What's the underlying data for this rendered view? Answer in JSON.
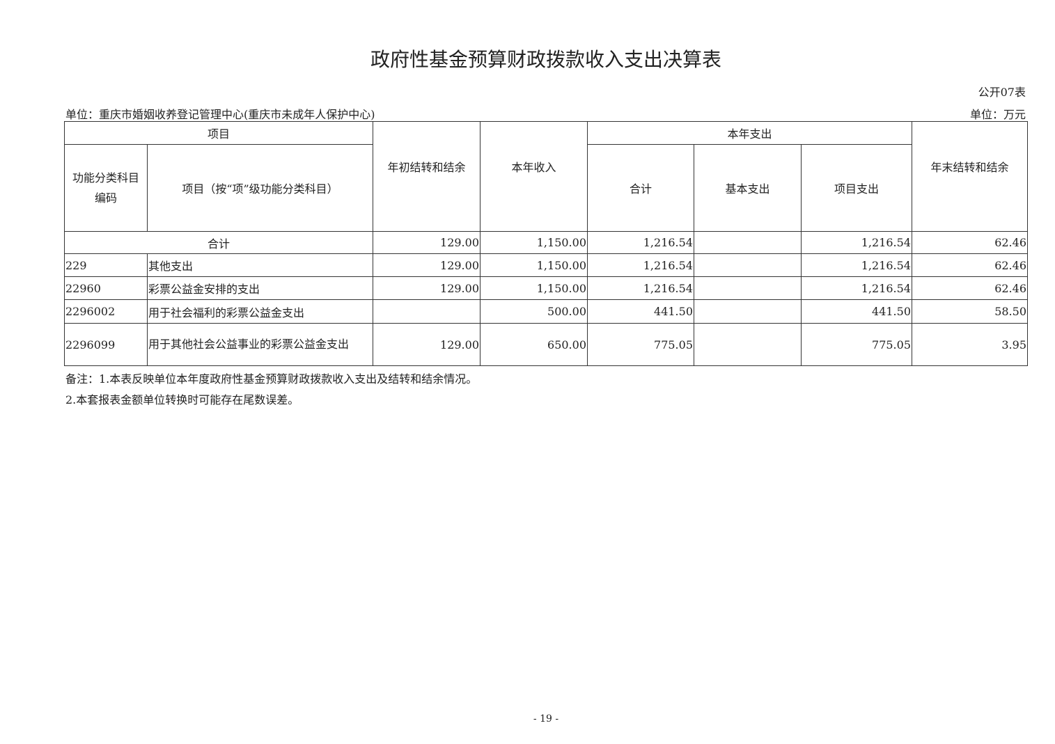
{
  "title": "政府性基金预算财政拨款收入支出决算表",
  "form_no": "公开07表",
  "unit_org": "单位：重庆市婚姻收养登记管理中心(重庆市未成年人保护中心)",
  "unit_money": "单位：万元",
  "headers": {
    "project": "项目",
    "code": "功能分类科目编码",
    "item": "项目（按“项”级功能分类科目）",
    "begin": "年初结转和结余",
    "income": "本年收入",
    "expense": "本年支出",
    "total": "合计",
    "basic": "基本支出",
    "proj": "项目支出",
    "end": "年末结转和结余"
  },
  "total_row": {
    "label": "合计",
    "begin": "129.00",
    "income": "1,150.00",
    "total": "1,216.54",
    "basic": "",
    "proj": "1,216.54",
    "end": "62.46"
  },
  "rows": [
    {
      "code": "229",
      "name": "其他支出",
      "begin": "129.00",
      "income": "1,150.00",
      "total": "1,216.54",
      "basic": "",
      "proj": "1,216.54",
      "end": "62.46"
    },
    {
      "code": "22960",
      "name": "彩票公益金安排的支出",
      "begin": "129.00",
      "income": "1,150.00",
      "total": "1,216.54",
      "basic": "",
      "proj": "1,216.54",
      "end": "62.46"
    },
    {
      "code": "2296002",
      "name": "用于社会福利的彩票公益金支出",
      "begin": "",
      "income": "500.00",
      "total": "441.50",
      "basic": "",
      "proj": "441.50",
      "end": "58.50"
    },
    {
      "code": "2296099",
      "name": "用于其他社会公益事业的彩票公益金支出",
      "begin": "129.00",
      "income": "650.00",
      "total": "775.05",
      "basic": "",
      "proj": "775.05",
      "end": "3.95"
    }
  ],
  "notes": [
    "备注：1.本表反映单位本年度政府性基金预算财政拨款收入支出及结转和结余情况。",
    "2.本套报表金额单位转换时可能存在尾数误差。"
  ],
  "page_number": "- 19 -"
}
